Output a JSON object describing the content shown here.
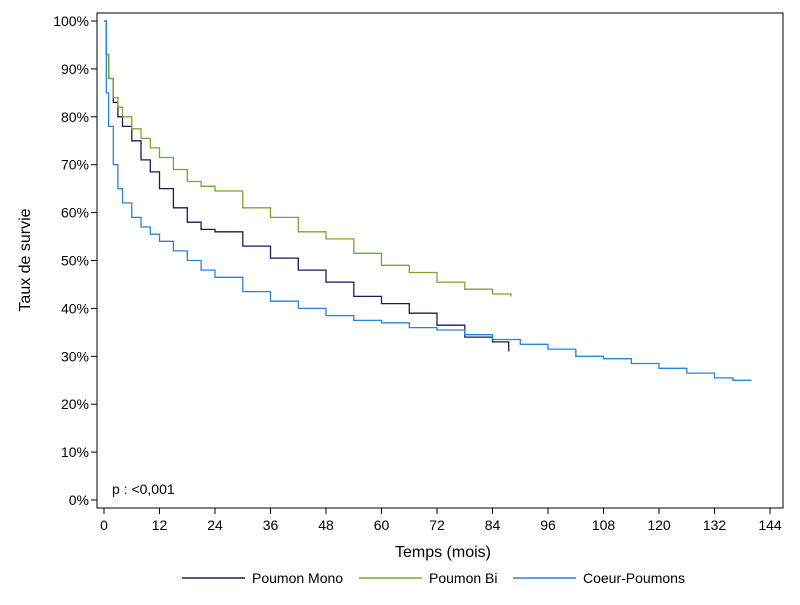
{
  "chart_data": {
    "type": "line",
    "xlabel": "Temps (mois)",
    "ylabel": "Taux de survie",
    "xlim": [
      0,
      144
    ],
    "ylim": [
      0,
      100
    ],
    "x_ticks": [
      0,
      12,
      24,
      36,
      48,
      60,
      72,
      84,
      96,
      108,
      120,
      132,
      144
    ],
    "y_ticks": [
      0,
      10,
      20,
      30,
      40,
      50,
      60,
      70,
      80,
      90,
      100
    ],
    "y_tick_labels": [
      "0%",
      "10%",
      "20%",
      "30%",
      "40%",
      "50%",
      "60%",
      "70%",
      "80%",
      "90%",
      "100%"
    ],
    "grid": false,
    "legend_position": "bottom",
    "annotation": "p : <0,001",
    "series": [
      {
        "name": "Poumon Mono",
        "color": "#1a1a5e",
        "x": [
          0,
          0.5,
          1,
          2,
          3,
          4,
          6,
          8,
          10,
          12,
          15,
          18,
          21,
          24,
          30,
          36,
          42,
          48,
          54,
          60,
          66,
          72,
          78,
          84,
          87.5
        ],
        "y": [
          100,
          93,
          88,
          83,
          80,
          78,
          75,
          71,
          68.5,
          65,
          61,
          58,
          56.5,
          56,
          53,
          50.5,
          48,
          45.5,
          42.5,
          41,
          39,
          36.5,
          34,
          33,
          31
        ]
      },
      {
        "name": "Poumon Bi",
        "color": "#7aa72a",
        "x": [
          0,
          0.5,
          1,
          2,
          3,
          4,
          6,
          8,
          10,
          12,
          15,
          18,
          21,
          24,
          30,
          36,
          42,
          48,
          54,
          60,
          66,
          72,
          78,
          84,
          88
        ],
        "y": [
          100,
          93,
          88,
          84,
          82,
          80,
          77.5,
          75.5,
          73.5,
          71.5,
          69,
          66.5,
          65.5,
          64.5,
          61,
          59,
          56,
          54.5,
          51.5,
          49,
          47.5,
          45.5,
          44,
          43,
          42.5
        ]
      },
      {
        "name": "Coeur-Poumons",
        "color": "#2683e0",
        "x": [
          0,
          0.5,
          1,
          2,
          3,
          4,
          6,
          8,
          10,
          12,
          15,
          18,
          21,
          24,
          30,
          36,
          42,
          48,
          54,
          60,
          66,
          72,
          78,
          84,
          90,
          96,
          102,
          108,
          114,
          120,
          126,
          132,
          136,
          140
        ],
        "y": [
          100,
          85,
          78,
          70,
          65,
          62,
          59,
          57,
          55.5,
          54,
          52,
          50,
          48,
          46.5,
          43.5,
          41.5,
          40,
          38.5,
          37.5,
          37,
          36,
          35.5,
          34.5,
          33.5,
          32.5,
          31.5,
          30,
          29.5,
          28.5,
          27.5,
          26.5,
          25.5,
          25,
          25
        ]
      }
    ]
  }
}
